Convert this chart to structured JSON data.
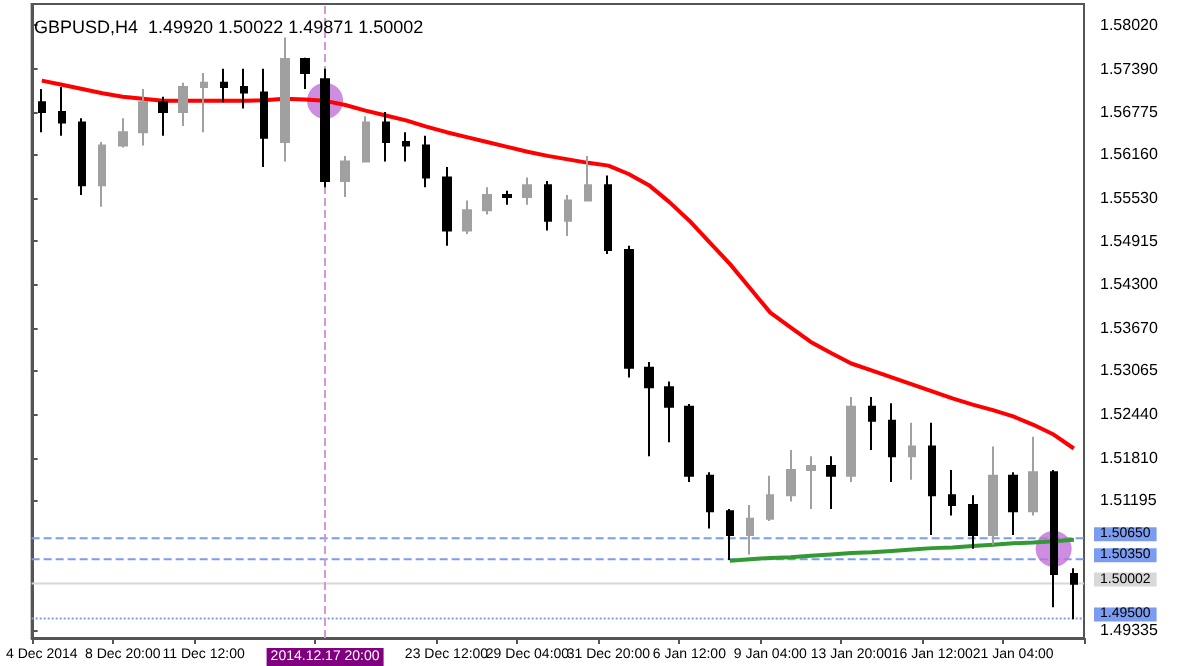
{
  "chart_data": {
    "type": "candlestick",
    "title": "GBPUSD,H4  1.49920 1.50022 1.49871 1.50002",
    "categories": [
      "4 Dec 2014",
      null,
      null,
      null,
      "8 Dec 20:00",
      null,
      null,
      null,
      "11 Dec 12:00",
      null,
      null,
      null,
      null,
      null,
      "2014.12.17 20:00",
      null,
      null,
      null,
      null,
      null,
      "23 Dec 12:00",
      null,
      null,
      null,
      "29 Dec 04:00",
      null,
      null,
      null,
      "31 Dec 20:00",
      null,
      null,
      null,
      "6 Jan 12:00",
      null,
      null,
      null,
      "9 Jan 04:00",
      null,
      null,
      null,
      "13 Jan 20:00",
      null,
      null,
      null,
      "16 Jan 12:00",
      null,
      null,
      null,
      "21 Jan 04:00",
      null,
      null,
      null
    ],
    "ohlc": [
      [
        1.5691,
        1.571,
        1.5648,
        1.5677
      ],
      [
        1.5677,
        1.5713,
        1.5643,
        1.5662
      ],
      [
        1.5662,
        1.5668,
        1.5558,
        1.5572
      ],
      [
        1.5572,
        1.5634,
        1.5541,
        1.5629
      ],
      [
        1.5629,
        1.5668,
        1.5626,
        1.5648
      ],
      [
        1.5648,
        1.571,
        1.5629,
        1.5691
      ],
      [
        1.5691,
        1.5699,
        1.5643,
        1.5677
      ],
      [
        1.5677,
        1.5719,
        1.5657,
        1.5713
      ],
      [
        1.5713,
        1.5733,
        1.5648,
        1.5719
      ],
      [
        1.5719,
        1.5739,
        1.5691,
        1.5713
      ],
      [
        1.5713,
        1.5739,
        1.5682,
        1.5705
      ],
      [
        1.5705,
        1.5739,
        1.5598,
        1.564
      ],
      [
        1.5634,
        1.5784,
        1.5606,
        1.5753
      ],
      [
        1.5753,
        1.5755,
        1.571,
        1.5733
      ],
      [
        1.5724,
        1.5739,
        1.5569,
        1.5578
      ],
      [
        1.5578,
        1.5614,
        1.5555,
        1.5606
      ],
      [
        1.5606,
        1.5671,
        1.5606,
        1.5662
      ],
      [
        1.5662,
        1.5677,
        1.5606,
        1.5634
      ],
      [
        1.5634,
        1.5648,
        1.5606,
        1.5629
      ],
      [
        1.5629,
        1.5643,
        1.5569,
        1.5583
      ],
      [
        1.5583,
        1.5598,
        1.5485,
        1.5507
      ],
      [
        1.5507,
        1.555,
        1.5502,
        1.5536
      ],
      [
        1.5536,
        1.5569,
        1.553,
        1.5558
      ],
      [
        1.5558,
        1.5564,
        1.5544,
        1.5555
      ],
      [
        1.5555,
        1.5583,
        1.5544,
        1.5572
      ],
      [
        1.5572,
        1.5578,
        1.5507,
        1.5521
      ],
      [
        1.5521,
        1.5558,
        1.5499,
        1.555
      ],
      [
        1.555,
        1.5614,
        1.555,
        1.5572
      ],
      [
        1.5572,
        1.5586,
        1.5473,
        1.5479
      ],
      [
        1.5479,
        1.5485,
        1.5296,
        1.531
      ],
      [
        1.531,
        1.5318,
        1.5183,
        1.5282
      ],
      [
        1.5282,
        1.529,
        1.5203,
        1.5254
      ],
      [
        1.5254,
        1.5258,
        1.5146,
        1.5155
      ],
      [
        1.5155,
        1.516,
        1.5079,
        1.5104
      ],
      [
        1.5104,
        1.5107,
        1.5034,
        1.507
      ],
      [
        1.507,
        1.5113,
        1.5042,
        1.5093
      ],
      [
        1.5093,
        1.5155,
        1.509,
        1.5127
      ],
      [
        1.5127,
        1.5192,
        1.5118,
        1.5163
      ],
      [
        1.5163,
        1.5183,
        1.5107,
        1.5169
      ],
      [
        1.5169,
        1.5183,
        1.5107,
        1.5155
      ],
      [
        1.5155,
        1.5268,
        1.5146,
        1.5254
      ],
      [
        1.5254,
        1.5268,
        1.5192,
        1.5234
      ],
      [
        1.5234,
        1.5259,
        1.5146,
        1.5183
      ],
      [
        1.5183,
        1.5231,
        1.5149,
        1.5197
      ],
      [
        1.5197,
        1.5231,
        1.507,
        1.5127
      ],
      [
        1.5127,
        1.5163,
        1.5098,
        1.5113
      ],
      [
        1.5113,
        1.5127,
        1.505,
        1.507
      ],
      [
        1.507,
        1.5197,
        1.5056,
        1.5155
      ],
      [
        1.5155,
        1.516,
        1.507,
        1.5104
      ],
      [
        1.5104,
        1.5211,
        1.5098,
        1.516
      ],
      [
        1.516,
        1.5163,
        1.4966,
        1.5014
      ],
      [
        1.5014,
        1.5022,
        1.4949,
        1.5
      ]
    ],
    "colors": [
      "#000000",
      "#000000",
      "#000000",
      "#a0a0a0",
      "#a0a0a0",
      "#a0a0a0",
      "#000000",
      "#a0a0a0",
      "#a0a0a0",
      "#000000",
      "#000000",
      "#000000",
      "#a0a0a0",
      "#000000",
      "#000000",
      "#a0a0a0",
      "#a0a0a0",
      "#000000",
      "#000000",
      "#000000",
      "#000000",
      "#a0a0a0",
      "#a0a0a0",
      "#000000",
      "#a0a0a0",
      "#000000",
      "#a0a0a0",
      "#a0a0a0",
      "#000000",
      "#000000",
      "#000000",
      "#000000",
      "#000000",
      "#000000",
      "#000000",
      "#a0a0a0",
      "#a0a0a0",
      "#a0a0a0",
      "#a0a0a0",
      "#000000",
      "#a0a0a0",
      "#000000",
      "#000000",
      "#a0a0a0",
      "#000000",
      "#000000",
      "#000000",
      "#a0a0a0",
      "#000000",
      "#a0a0a0",
      "#000000",
      "#000000"
    ],
    "series": [
      {
        "type": "line",
        "color": "#ff0000",
        "values": [
          1.5722,
          1.5716,
          1.571,
          1.5704,
          1.5699,
          1.5696,
          1.5693,
          1.5693,
          1.5693,
          1.5693,
          1.5693,
          1.5694,
          1.5696,
          1.5695,
          1.5693,
          1.5687,
          1.5679,
          1.5672,
          1.5665,
          1.5656,
          1.5648,
          1.5641,
          1.5634,
          1.5627,
          1.562,
          1.5614,
          1.5609,
          1.5604,
          1.56,
          1.5588,
          1.5572,
          1.5548,
          1.5521,
          1.549,
          1.5459,
          1.5424,
          1.5389,
          1.5368,
          1.5347,
          1.5331,
          1.5316,
          1.5306,
          1.5296,
          1.5286,
          1.5276,
          1.5266,
          1.5257,
          1.5249,
          1.524,
          1.5228,
          1.5214,
          1.5194
        ]
      },
      {
        "type": "line",
        "color": "#339933",
        "values": [
          null,
          null,
          null,
          null,
          null,
          null,
          null,
          null,
          null,
          null,
          null,
          null,
          null,
          null,
          null,
          null,
          null,
          null,
          null,
          null,
          null,
          null,
          null,
          null,
          null,
          null,
          null,
          null,
          null,
          null,
          null,
          null,
          null,
          null,
          1.5033,
          1.5035,
          1.5037,
          1.5038,
          1.504,
          1.5042,
          1.5044,
          1.5045,
          1.5047,
          1.5049,
          1.5051,
          1.5052,
          1.5054,
          1.5056,
          1.5058,
          1.5059,
          1.5061,
          1.5063
        ]
      },
      {
        "type": "scatter",
        "color": "#c070d8",
        "values": [
          null,
          null,
          null,
          null,
          null,
          null,
          null,
          null,
          null,
          null,
          null,
          null,
          null,
          null,
          1.5693,
          null,
          null,
          null,
          null,
          null,
          null,
          null,
          null,
          null,
          null,
          null,
          null,
          null,
          null,
          null,
          null,
          null,
          null,
          null,
          null,
          null,
          null,
          null,
          null,
          null,
          null,
          null,
          null,
          null,
          null,
          null,
          null,
          null,
          null,
          null,
          1.505,
          null
        ]
      }
    ],
    "ylim": [
      1.4922,
      1.5832
    ],
    "yticks": [
      {
        "value": 1.5802,
        "label": "1.58020"
      },
      {
        "value": 1.5739,
        "label": "1.57390"
      },
      {
        "value": 1.56775,
        "label": "1.56775"
      },
      {
        "value": 1.5616,
        "label": "1.56160"
      },
      {
        "value": 1.5553,
        "label": "1.55530"
      },
      {
        "value": 1.54915,
        "label": "1.54915"
      },
      {
        "value": 1.543,
        "label": "1.54300"
      },
      {
        "value": 1.5367,
        "label": "1.53670"
      },
      {
        "value": 1.53065,
        "label": "1.53065"
      },
      {
        "value": 1.5244,
        "label": "1.52440"
      },
      {
        "value": 1.5181,
        "label": "1.51810"
      },
      {
        "value": 1.51195,
        "label": "1.51195"
      },
      {
        "value": 1.49335,
        "label": "1.49335"
      }
    ],
    "ref_lines": [
      {
        "axis": "y",
        "value": 1.5065,
        "label": "1.50650",
        "color": "#7b9cf0",
        "line_style": "dashed"
      },
      {
        "axis": "y",
        "value": 1.5035,
        "label": "1.50350",
        "color": "#7b9cf0",
        "line_style": "dashed"
      },
      {
        "axis": "y",
        "value": 1.50002,
        "label": "1.50002",
        "color": "#d8d8d8",
        "line_style": "solid"
      },
      {
        "axis": "y",
        "value": 1.495,
        "label": "1.49500",
        "color": "#7b9cf0",
        "line_style": "dotted"
      },
      {
        "axis": "x",
        "value": "2014.12.17 20:00",
        "color": "#d49ad8",
        "line_style": "dashed"
      }
    ],
    "grid": false
  }
}
